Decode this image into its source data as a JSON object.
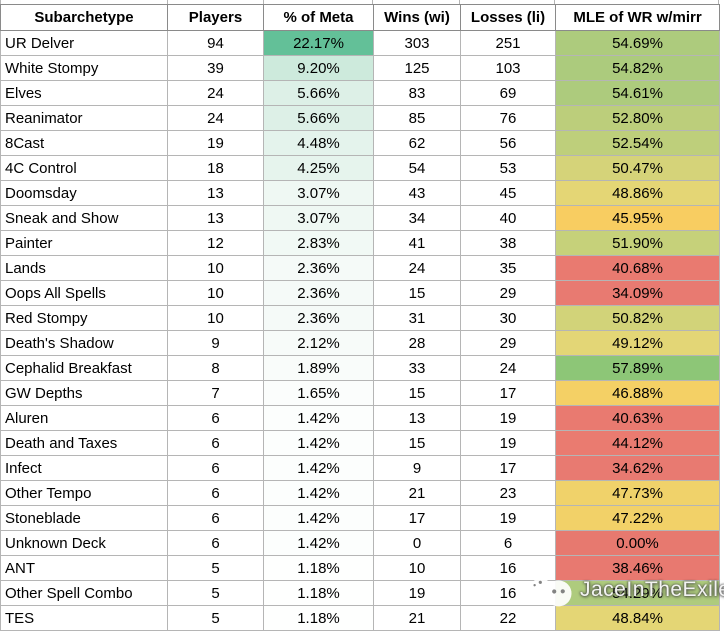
{
  "watermark": {
    "text": "JaceInTheExile"
  },
  "colors": {
    "grid_line": "#b5b5b5",
    "header_border": "#8a8a8a",
    "text": "#000000",
    "meta_scale_max": "#57bb8a",
    "mle_red": "#e97a70",
    "mle_yellow": "#f2d168",
    "mle_green": "#8dc677"
  },
  "chart_data": {
    "type": "table",
    "title": "",
    "columns": [
      "Subarchetype",
      "Players",
      "% of Meta",
      "Wins (wi)",
      "Losses (li)",
      "MLE of WR w/mirr"
    ],
    "rows": [
      {
        "name": "UR Delver",
        "players": "94",
        "meta": "22.17%",
        "wins": "303",
        "losses": "251",
        "mle": "54.69%",
        "meta_color": "#63C098",
        "mle_color": "#ADCB7D"
      },
      {
        "name": "White Stompy",
        "players": "39",
        "meta": "9.20%",
        "wins": "125",
        "losses": "103",
        "mle": "54.82%",
        "meta_color": "#CDEADC",
        "mle_color": "#ACCB7D"
      },
      {
        "name": "Elves",
        "players": "24",
        "meta": "5.66%",
        "wins": "83",
        "losses": "69",
        "mle": "54.61%",
        "meta_color": "#DDF0E7",
        "mle_color": "#ADCB7D"
      },
      {
        "name": "Reanimator",
        "players": "24",
        "meta": "5.66%",
        "wins": "85",
        "losses": "76",
        "mle": "52.80%",
        "meta_color": "#DDF0E7",
        "mle_color": "#BCCE7B"
      },
      {
        "name": "8Cast",
        "players": "19",
        "meta": "4.48%",
        "wins": "62",
        "losses": "56",
        "mle": "52.54%",
        "meta_color": "#E4F3EC",
        "mle_color": "#BECF7B"
      },
      {
        "name": "4C Control",
        "players": "18",
        "meta": "4.25%",
        "wins": "54",
        "losses": "53",
        "mle": "50.47%",
        "meta_color": "#E6F4ED",
        "mle_color": "#D5D379"
      },
      {
        "name": "Doomsday",
        "players": "13",
        "meta": "3.07%",
        "wins": "43",
        "losses": "45",
        "mle": "48.86%",
        "meta_color": "#EFF8F3",
        "mle_color": "#E4D675"
      },
      {
        "name": "Sneak and Show",
        "players": "13",
        "meta": "3.07%",
        "wins": "34",
        "losses": "40",
        "mle": "45.95%",
        "meta_color": "#EFF8F3",
        "mle_color": "#F8CD61"
      },
      {
        "name": "Painter",
        "players": "12",
        "meta": "2.83%",
        "wins": "41",
        "losses": "38",
        "mle": "51.90%",
        "meta_color": "#F1F9F5",
        "mle_color": "#C6D17A"
      },
      {
        "name": "Lands",
        "players": "10",
        "meta": "2.36%",
        "wins": "24",
        "losses": "35",
        "mle": "40.68%",
        "meta_color": "#F5FAF8",
        "mle_color": "#E97A70"
      },
      {
        "name": "Oops All Spells",
        "players": "10",
        "meta": "2.36%",
        "wins": "15",
        "losses": "29",
        "mle": "34.09%",
        "meta_color": "#F5FAF8",
        "mle_color": "#E87A71"
      },
      {
        "name": "Red Stompy",
        "players": "10",
        "meta": "2.36%",
        "wins": "31",
        "losses": "30",
        "mle": "50.82%",
        "meta_color": "#F5FAF8",
        "mle_color": "#D2D379"
      },
      {
        "name": "Death's Shadow",
        "players": "9",
        "meta": "2.12%",
        "wins": "28",
        "losses": "29",
        "mle": "49.12%",
        "meta_color": "#F7FBF9",
        "mle_color": "#E3D676"
      },
      {
        "name": "Cephalid Breakfast",
        "players": "8",
        "meta": "1.89%",
        "wins": "33",
        "losses": "24",
        "mle": "57.89%",
        "meta_color": "#F9FCFA",
        "mle_color": "#8DC677"
      },
      {
        "name": "GW Depths",
        "players": "7",
        "meta": "1.65%",
        "wins": "15",
        "losses": "17",
        "mle": "46.88%",
        "meta_color": "#FBFDFC",
        "mle_color": "#F4D065"
      },
      {
        "name": "Aluren",
        "players": "6",
        "meta": "1.42%",
        "wins": "13",
        "losses": "19",
        "mle": "40.63%",
        "meta_color": "#FCFEFD",
        "mle_color": "#E97A70"
      },
      {
        "name": "Death and Taxes",
        "players": "6",
        "meta": "1.42%",
        "wins": "15",
        "losses": "19",
        "mle": "44.12%",
        "meta_color": "#FCFEFD",
        "mle_color": "#EA7B70"
      },
      {
        "name": "Infect",
        "players": "6",
        "meta": "1.42%",
        "wins": "9",
        "losses": "17",
        "mle": "34.62%",
        "meta_color": "#FCFEFD",
        "mle_color": "#E87A71"
      },
      {
        "name": "Other Tempo",
        "players": "6",
        "meta": "1.42%",
        "wins": "21",
        "losses": "23",
        "mle": "47.73%",
        "meta_color": "#FCFEFD",
        "mle_color": "#F0D26A"
      },
      {
        "name": "Stoneblade",
        "players": "6",
        "meta": "1.42%",
        "wins": "17",
        "losses": "19",
        "mle": "47.22%",
        "meta_color": "#FCFEFD",
        "mle_color": "#F2D168"
      },
      {
        "name": "Unknown Deck",
        "players": "6",
        "meta": "1.42%",
        "wins": "0",
        "losses": "6",
        "mle": "0.00%",
        "meta_color": "#FCFEFD",
        "mle_color": "#E7796F"
      },
      {
        "name": "ANT",
        "players": "5",
        "meta": "1.18%",
        "wins": "10",
        "losses": "16",
        "mle": "38.46%",
        "meta_color": "#FEFFFE",
        "mle_color": "#E87970"
      },
      {
        "name": "Other Spell Combo",
        "players": "5",
        "meta": "1.18%",
        "wins": "19",
        "losses": "16",
        "mle": "54.29%",
        "meta_color": "#FEFFFE",
        "mle_color": "#AECB7D"
      },
      {
        "name": "TES",
        "players": "5",
        "meta": "1.18%",
        "wins": "21",
        "losses": "22",
        "mle": "48.84%",
        "meta_color": "#FEFFFE",
        "mle_color": "#E4D675"
      }
    ]
  }
}
